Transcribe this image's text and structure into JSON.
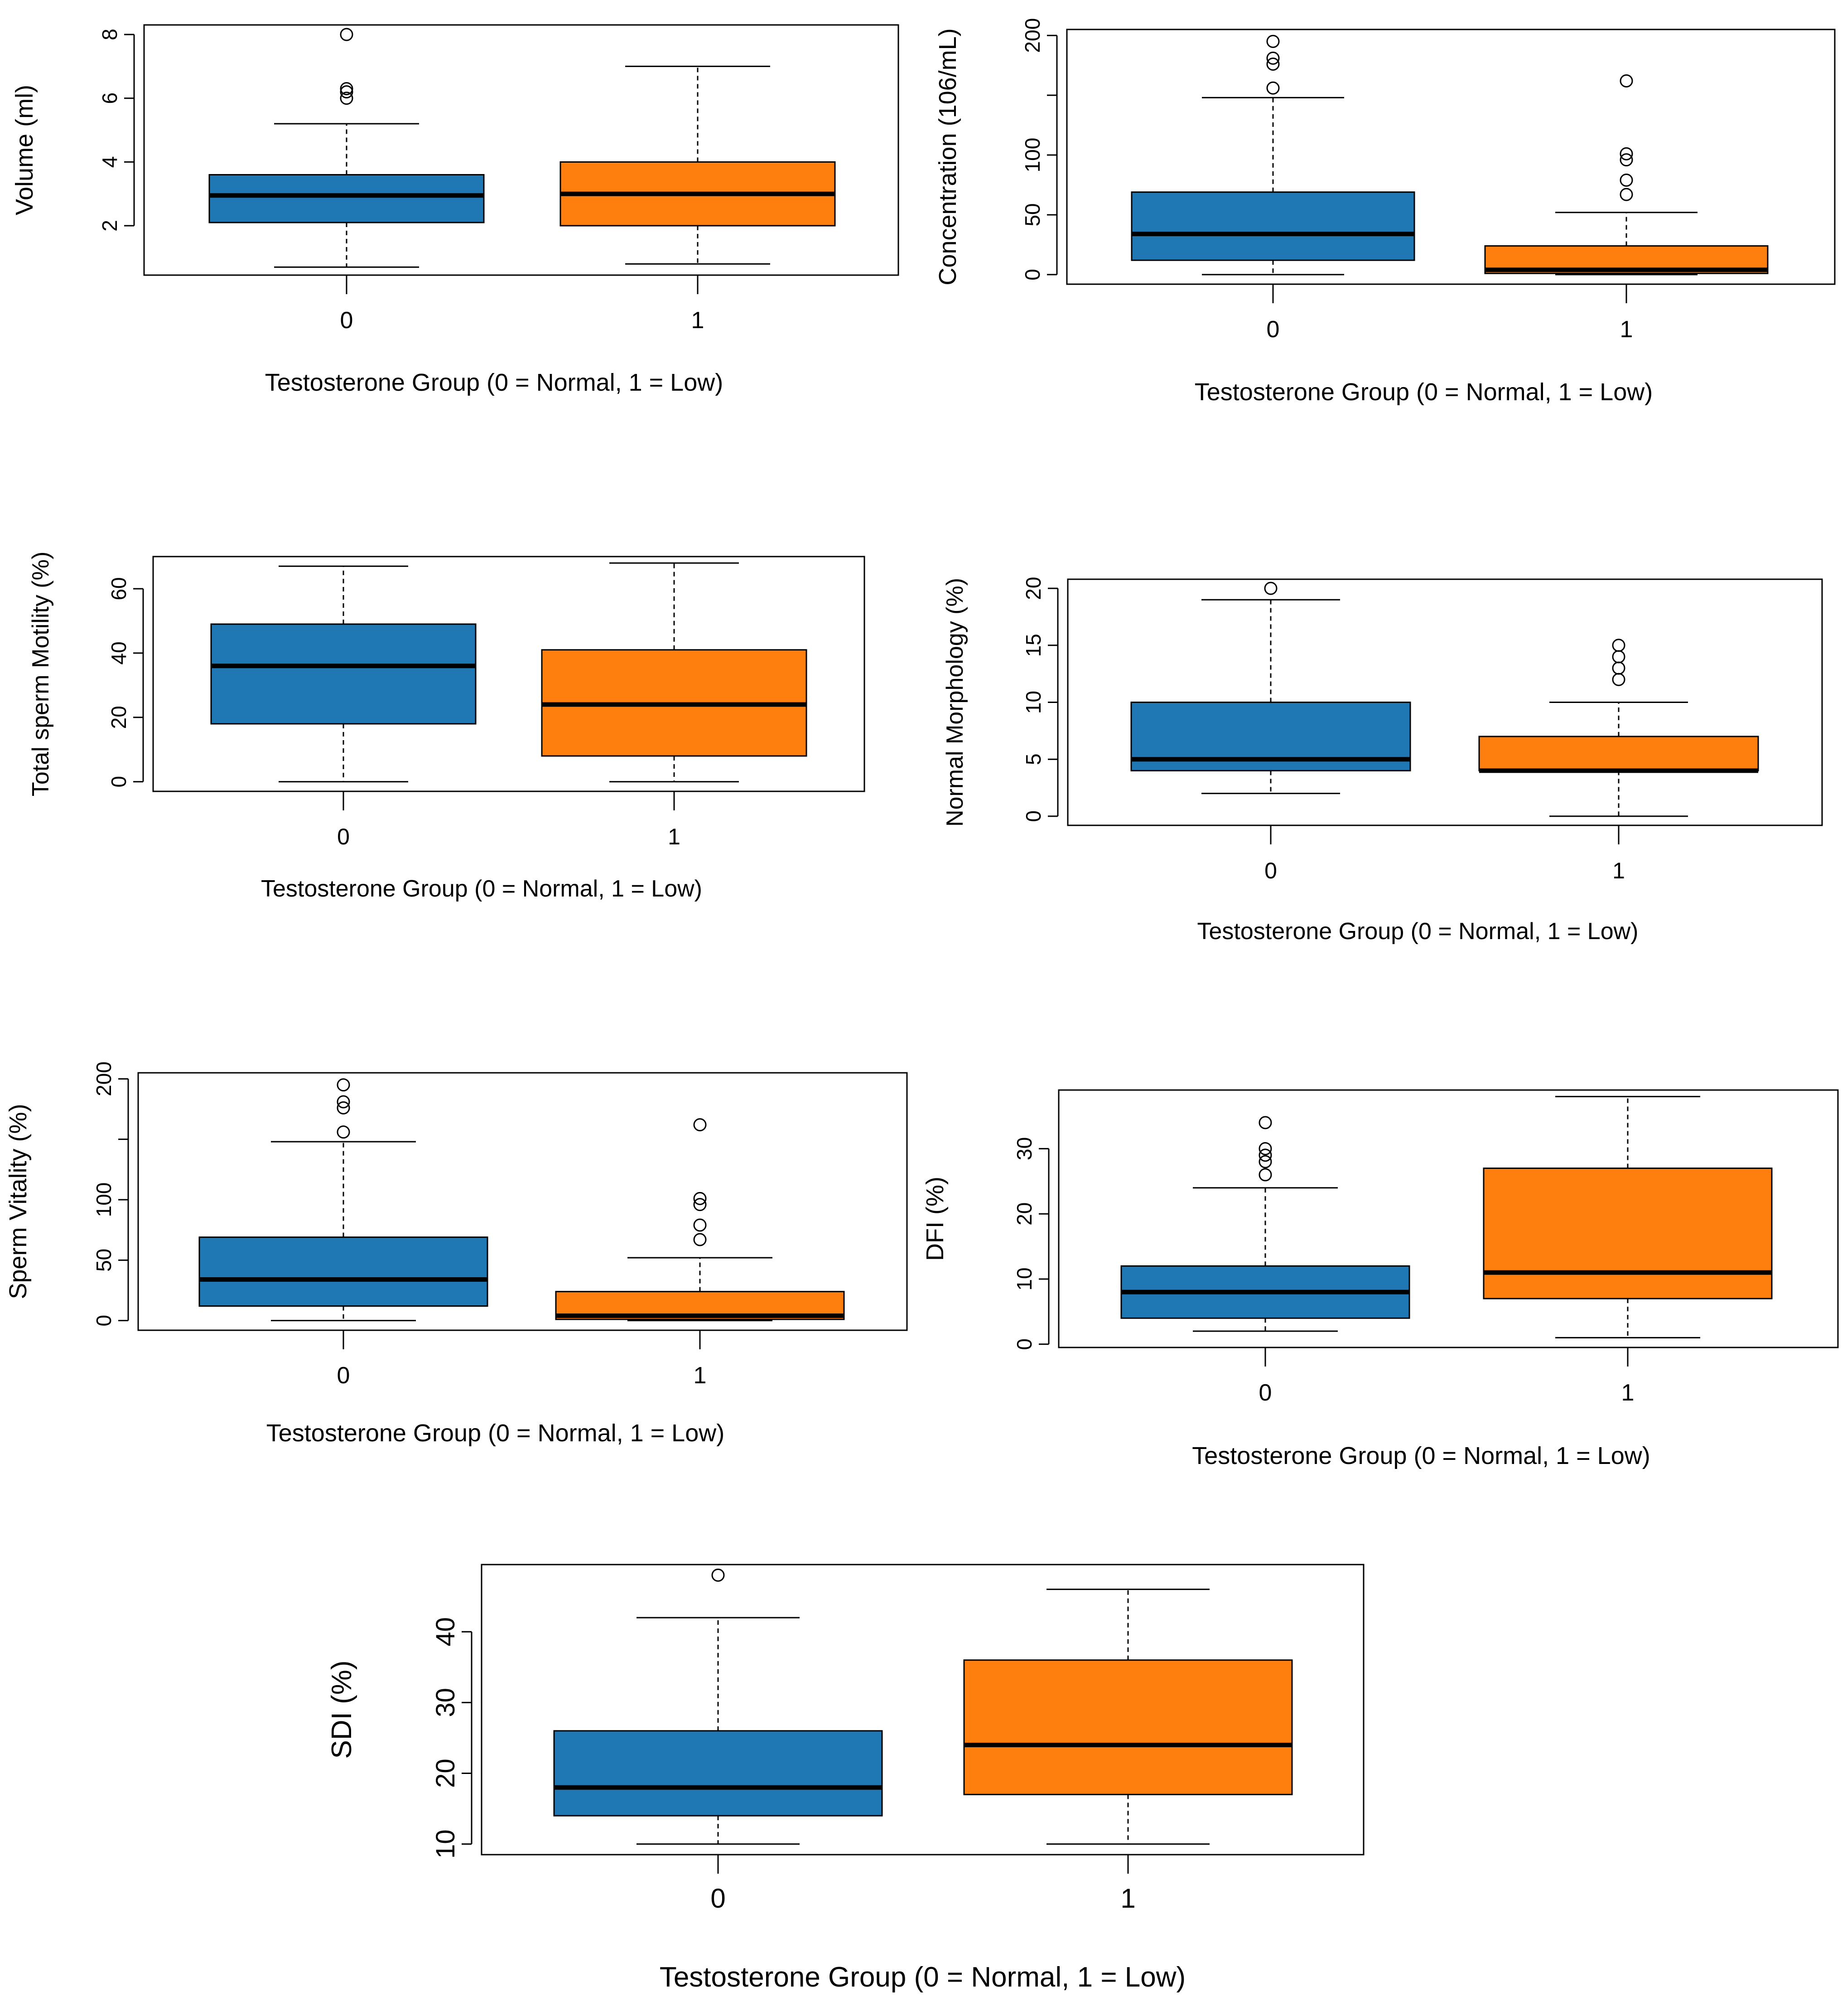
{
  "colors": {
    "group_0": "#1f77b4",
    "group_1": "#ff7f0e",
    "median": "#000000",
    "frame": "#000000"
  },
  "chart_data": [
    {
      "type": "box",
      "title": "",
      "xlabel": "Testosterone Group (0 = Normal, 1 = Low)",
      "ylabel": "Volume (ml)",
      "categories": [
        "0",
        "1"
      ],
      "yticks": [
        2,
        4,
        6,
        8
      ],
      "ylim": [
        0.45,
        8.3
      ],
      "grid": false,
      "boxes": [
        {
          "group": "0",
          "whisker_low": 0.7,
          "q1": 2.1,
          "median": 2.95,
          "q3": 3.6,
          "whisker_high": 5.2,
          "outliers": [
            6.0,
            6.2,
            6.3,
            8.0
          ]
        },
        {
          "group": "1",
          "whisker_low": 0.8,
          "q1": 2.0,
          "median": 3.0,
          "q3": 4.0,
          "whisker_high": 7.0,
          "outliers": []
        }
      ]
    },
    {
      "type": "box",
      "title": "",
      "xlabel": "Testosterone Group (0 = Normal, 1 = Low)",
      "ylabel": "Concentration (106/mL)",
      "categories": [
        "0",
        "1"
      ],
      "yticks": [
        0,
        50,
        100,
        150,
        200
      ],
      "ytick_labels": [
        "0",
        "50",
        "100",
        "",
        "200"
      ],
      "ylim": [
        -8,
        205
      ],
      "grid": false,
      "boxes": [
        {
          "group": "0",
          "whisker_low": 0,
          "q1": 12,
          "median": 34,
          "q3": 69,
          "whisker_high": 148,
          "outliers": [
            156,
            176,
            181,
            195
          ]
        },
        {
          "group": "1",
          "whisker_low": 0,
          "q1": 1,
          "median": 4,
          "q3": 24,
          "whisker_high": 52,
          "outliers": [
            67,
            79,
            96,
            101,
            162
          ]
        }
      ]
    },
    {
      "type": "box",
      "title": "",
      "xlabel": "Testosterone Group (0 = Normal, 1 = Low)",
      "ylabel": "Total sperm Motility (%)",
      "categories": [
        "0",
        "1"
      ],
      "yticks": [
        0,
        20,
        40,
        60
      ],
      "ytick_labels": [
        "0",
        "20",
        "40",
        "60"
      ],
      "ylim": [
        -3,
        70
      ],
      "grid": false,
      "boxes": [
        {
          "group": "0",
          "whisker_low": 0,
          "q1": 18,
          "median": 36,
          "q3": 49,
          "whisker_high": 67,
          "outliers": []
        },
        {
          "group": "1",
          "whisker_low": 0,
          "q1": 8,
          "median": 24,
          "q3": 41,
          "whisker_high": 68,
          "outliers": []
        }
      ]
    },
    {
      "type": "box",
      "title": "",
      "xlabel": "Testosterone Group (0 = Normal, 1 = Low)",
      "ylabel": "Normal Morphology (%)",
      "categories": [
        "0",
        "1"
      ],
      "yticks": [
        0,
        5,
        10,
        15,
        20
      ],
      "ytick_labels": [
        "0",
        "5",
        "10",
        "15",
        "20"
      ],
      "ylim": [
        -0.8,
        20.8
      ],
      "grid": false,
      "boxes": [
        {
          "group": "0",
          "whisker_low": 2,
          "q1": 4,
          "median": 5,
          "q3": 10,
          "whisker_high": 19,
          "outliers": [
            20
          ]
        },
        {
          "group": "1",
          "whisker_low": 0,
          "q1": 4,
          "median": 4,
          "q3": 7,
          "whisker_high": 10,
          "outliers": [
            12,
            13,
            14,
            15
          ]
        }
      ]
    },
    {
      "type": "box",
      "title": "",
      "xlabel": "Testosterone Group (0 = Normal, 1 = Low)",
      "ylabel": "Sperm Vitality (%)",
      "categories": [
        "0",
        "1"
      ],
      "yticks": [
        0,
        50,
        100,
        150,
        200
      ],
      "ytick_labels": [
        "0",
        "50",
        "100",
        "",
        "200"
      ],
      "ylim": [
        -8,
        205
      ],
      "grid": false,
      "boxes": [
        {
          "group": "0",
          "whisker_low": 0,
          "q1": 12,
          "median": 34,
          "q3": 69,
          "whisker_high": 148,
          "outliers": [
            156,
            176,
            181,
            195
          ]
        },
        {
          "group": "1",
          "whisker_low": 0,
          "q1": 1,
          "median": 4,
          "q3": 24,
          "whisker_high": 52,
          "outliers": [
            67,
            79,
            96,
            101,
            162
          ]
        }
      ]
    },
    {
      "type": "box",
      "title": "",
      "xlabel": "Testosterone Group (0 = Normal, 1 = Low)",
      "ylabel": "DFI (%)",
      "categories": [
        "0",
        "1"
      ],
      "yticks": [
        0,
        10,
        20,
        30
      ],
      "ytick_labels": [
        "0",
        "10",
        "20",
        "30"
      ],
      "ylim": [
        -0.5,
        39
      ],
      "grid": false,
      "boxes": [
        {
          "group": "0",
          "whisker_low": 2,
          "q1": 4,
          "median": 8,
          "q3": 12,
          "whisker_high": 24,
          "outliers": [
            26,
            28,
            29,
            30,
            34
          ]
        },
        {
          "group": "1",
          "whisker_low": 1,
          "q1": 7,
          "median": 11,
          "q3": 27,
          "whisker_high": 38,
          "outliers": []
        }
      ]
    },
    {
      "type": "box",
      "title": "",
      "xlabel": "Testosterone Group (0 = Normal, 1 = Low)",
      "ylabel": "SDI (%)",
      "categories": [
        "0",
        "1"
      ],
      "yticks": [
        10,
        20,
        30,
        40
      ],
      "ytick_labels": [
        "10",
        "20",
        "30",
        "40"
      ],
      "ylim": [
        8.5,
        49.5
      ],
      "grid": false,
      "boxes": [
        {
          "group": "0",
          "whisker_low": 10,
          "q1": 14,
          "median": 18,
          "q3": 26,
          "whisker_high": 42,
          "outliers": [
            48
          ]
        },
        {
          "group": "1",
          "whisker_low": 10,
          "q1": 17,
          "median": 24,
          "q3": 36,
          "whisker_high": 46,
          "outliers": []
        }
      ]
    }
  ]
}
